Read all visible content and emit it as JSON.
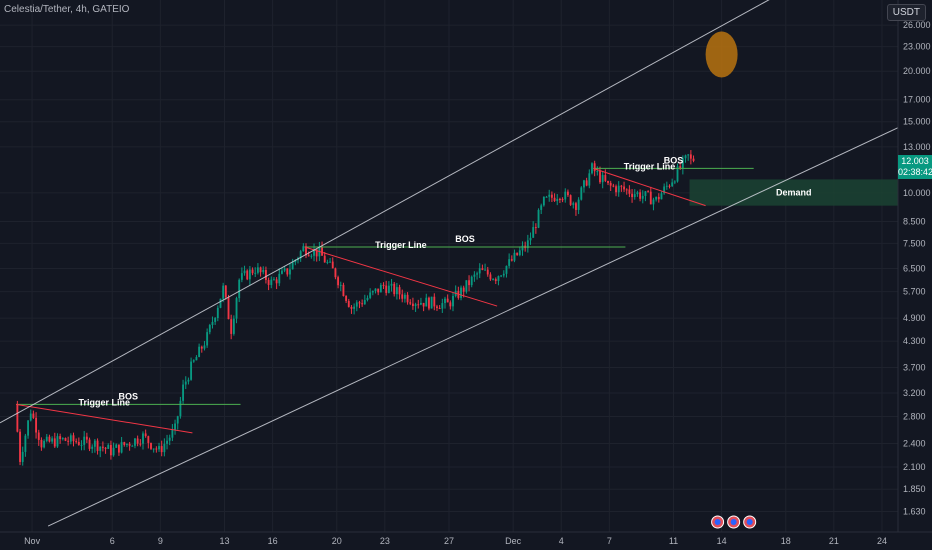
{
  "header": {
    "title": "Celestia/Tether, 4h, GATEIO",
    "currency": "USDT"
  },
  "price_tag": {
    "value": "12.003",
    "timer": "02:38:42"
  },
  "colors": {
    "background": "#131722",
    "up": "#089981",
    "down": "#f23645",
    "bos_line": "#4caf50",
    "trigger_line": "#f23645",
    "channel": "#d1d4dc",
    "demand_zone": "#1b4332",
    "target_circle": "#b8730f"
  },
  "chart_data": {
    "type": "candlestick",
    "title": "Celestia/Tether, 4h, GATEIO",
    "y_scale": "log",
    "ylim": [
      1.45,
      30
    ],
    "y_ticks": [
      26.0,
      23.0,
      20.0,
      17.0,
      15.0,
      13.0,
      10.0,
      8.5,
      7.5,
      6.5,
      5.7,
      4.9,
      4.3,
      3.7,
      3.2,
      2.8,
      2.4,
      2.1,
      1.85,
      1.63
    ],
    "y_tick_labels": [
      "26.000",
      "23.000",
      "20.000",
      "17.000",
      "15.000",
      "13.000",
      "10.000",
      "8.500",
      "7.500",
      "6.500",
      "5.700",
      "4.900",
      "4.300",
      "3.700",
      "3.200",
      "2.800",
      "2.400",
      "2.100",
      "1.850",
      "1.630"
    ],
    "x_ticks": [
      "Nov",
      "6",
      "9",
      "13",
      "16",
      "20",
      "23",
      "27",
      "Dec",
      "4",
      "7",
      "11",
      "14",
      "18",
      "21",
      "24"
    ],
    "x_range": [
      "2023-10-30",
      "2023-12-25"
    ],
    "last_price": 12.003,
    "price_path": [
      [
        "2023-10-31 00:00",
        3.0
      ],
      [
        "2023-10-31 08:00",
        2.2
      ],
      [
        "2023-11-01 00:00",
        2.9
      ],
      [
        "2023-11-01 16:00",
        2.4
      ],
      [
        "2023-11-03 00:00",
        2.45
      ],
      [
        "2023-11-05 00:00",
        2.4
      ],
      [
        "2023-11-06 00:00",
        2.3
      ],
      [
        "2023-11-08 00:00",
        2.5
      ],
      [
        "2023-11-09 00:00",
        2.3
      ],
      [
        "2023-11-10 00:00",
        2.6
      ],
      [
        "2023-11-10 12:00",
        3.3
      ],
      [
        "2023-11-11 00:00",
        3.7
      ],
      [
        "2023-11-12 00:00",
        4.4
      ],
      [
        "2023-11-13 00:00",
        5.8
      ],
      [
        "2023-11-13 12:00",
        4.6
      ],
      [
        "2023-11-14 00:00",
        6.1
      ],
      [
        "2023-11-15 00:00",
        6.5
      ],
      [
        "2023-11-16 00:00",
        6.0
      ],
      [
        "2023-11-17 00:00",
        6.4
      ],
      [
        "2023-11-18 00:00",
        7.3
      ],
      [
        "2023-11-19 00:00",
        7.1
      ],
      [
        "2023-11-20 00:00",
        6.3
      ],
      [
        "2023-11-21 00:00",
        5.2
      ],
      [
        "2023-11-22 00:00",
        5.5
      ],
      [
        "2023-11-23 00:00",
        5.9
      ],
      [
        "2023-11-25 00:00",
        5.4
      ],
      [
        "2023-11-27 00:00",
        5.3
      ],
      [
        "2023-11-28 00:00",
        5.8
      ],
      [
        "2023-11-29 00:00",
        6.4
      ],
      [
        "2023-11-30 00:00",
        6.2
      ],
      [
        "2023-12-01 00:00",
        6.8
      ],
      [
        "2023-12-02 00:00",
        7.5
      ],
      [
        "2023-12-03 00:00",
        9.5
      ],
      [
        "2023-12-04 00:00",
        10.0
      ],
      [
        "2023-12-05 00:00",
        9.4
      ],
      [
        "2023-12-06 00:00",
        11.5
      ],
      [
        "2023-12-07 00:00",
        10.4
      ],
      [
        "2023-12-08 00:00",
        10.2
      ],
      [
        "2023-12-09 00:00",
        9.9
      ],
      [
        "2023-12-10 00:00",
        9.6
      ],
      [
        "2023-12-11 00:00",
        10.8
      ],
      [
        "2023-12-12 00:00",
        12.3
      ],
      [
        "2023-12-12 04:00",
        12.003
      ]
    ],
    "annotations": [
      {
        "type": "hline",
        "label": "BOS",
        "level": 3.0,
        "from": "2023-10-31",
        "to": "2023-11-14"
      },
      {
        "type": "trendline",
        "label": "Trigger Line",
        "points": [
          [
            "2023-10-31",
            3.0
          ],
          [
            "2023-11-11",
            2.55
          ]
        ]
      },
      {
        "type": "hline",
        "label": "BOS",
        "level": 7.35,
        "from": "2023-11-18",
        "to": "2023-12-08"
      },
      {
        "type": "trendline",
        "label": "Trigger Line",
        "points": [
          [
            "2023-11-18",
            7.35
          ],
          [
            "2023-11-30",
            5.25
          ]
        ]
      },
      {
        "type": "hline",
        "label": "BOS",
        "level": 11.5,
        "from": "2023-12-06",
        "to": "2023-12-16"
      },
      {
        "type": "trendline",
        "label": "Trigger Line",
        "points": [
          [
            "2023-12-06",
            11.5
          ],
          [
            "2023-12-13",
            9.3
          ]
        ]
      },
      {
        "type": "zone",
        "label": "Demand",
        "range": [
          9.3,
          10.8
        ],
        "from": "2023-12-12",
        "to": "2023-12-25"
      },
      {
        "type": "channel_line",
        "points": [
          [
            "2023-10-30",
            2.7
          ],
          [
            "2023-12-25",
            45
          ]
        ]
      },
      {
        "type": "channel_line",
        "points": [
          [
            "2023-11-02",
            1.5
          ],
          [
            "2023-12-25",
            14.5
          ]
        ]
      },
      {
        "type": "circle",
        "center": [
          "2023-12-14",
          22.0
        ]
      }
    ],
    "events": [
      "2023-12-14",
      "2023-12-15",
      "2023-12-16"
    ]
  }
}
